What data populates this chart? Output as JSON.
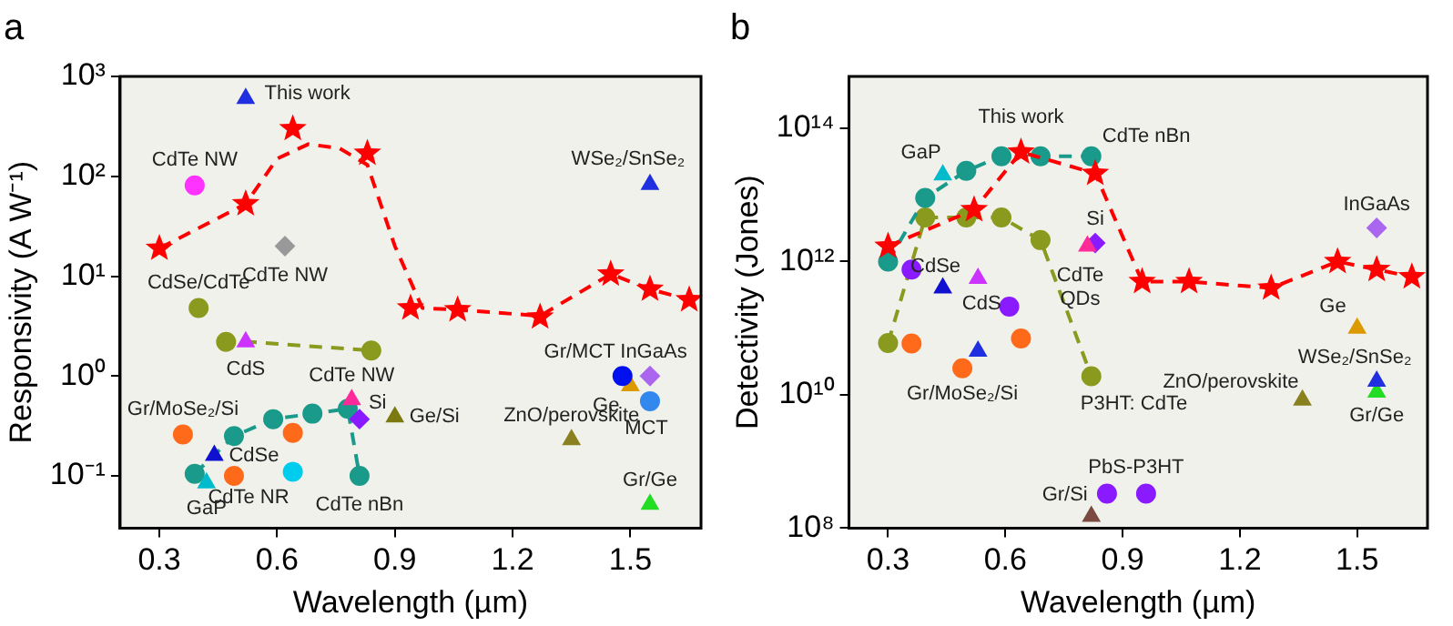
{
  "chart_data": [
    {
      "type": "scatter",
      "title": "a",
      "xlabel": "Wavelength (µm)",
      "ylabel": "Responsivity (A W⁻¹)",
      "log": "y",
      "xlim": [
        0.2,
        1.68
      ],
      "xticks": [
        0.3,
        0.6,
        0.9,
        1.2,
        1.5
      ],
      "ylim": [
        0.03,
        1000
      ],
      "yticks": [
        {
          "value": 0.1,
          "label": "10⁻¹"
        },
        {
          "value": 1,
          "label": "10⁰"
        },
        {
          "value": 10,
          "label": "10¹"
        },
        {
          "value": 100,
          "label": "10²"
        },
        {
          "value": 1000,
          "label": "10³"
        }
      ],
      "series": [
        {
          "name": "This work",
          "type": "scatter",
          "marker": "star",
          "color": "#ff0000",
          "x": [
            0.3,
            0.52,
            0.64,
            0.83,
            0.94,
            1.06,
            1.27,
            1.45,
            1.55,
            1.65
          ],
          "values": [
            19,
            53,
            300,
            170,
            4.8,
            4.6,
            3.9,
            10.5,
            7.4,
            5.8
          ]
        },
        {
          "type": "line",
          "marker": "none",
          "line_style": "dashed",
          "color": "#ff0000",
          "x": [
            0.3,
            0.52,
            0.6,
            0.68,
            0.76,
            0.83,
            0.9,
            0.97,
            1.06,
            1.27,
            1.45,
            1.55,
            1.65
          ],
          "values": [
            19,
            53,
            150,
            210,
            190,
            130,
            20,
            4.8,
            4.6,
            4,
            10.5,
            7.4,
            5.8
          ]
        },
        {
          "type": "scatter",
          "marker": "triangle",
          "color": "#2030e0",
          "x": [
            0.52
          ],
          "values": [
            600
          ]
        },
        {
          "name": "WSe₂/SnSe₂",
          "type": "scatter",
          "marker": "triangle",
          "color": "#2030e0",
          "x": [
            1.55
          ],
          "values": [
            83
          ]
        },
        {
          "name": "CdTe NW",
          "type": "scatter",
          "marker": "circle",
          "color": "#ff33ff",
          "x": [
            0.39
          ],
          "values": [
            81
          ]
        },
        {
          "name": "CdTe NW",
          "type": "scatter",
          "marker": "diamond",
          "color": "#999999",
          "x": [
            0.62
          ],
          "values": [
            20
          ]
        },
        {
          "name": "CdSe/CdTe",
          "type": "scatter",
          "marker": "circle",
          "color": "#8a9a1e",
          "x": [
            0.4,
            0.47,
            0.84
          ],
          "values": [
            4.8,
            2.2,
            1.8
          ]
        },
        {
          "type": "line",
          "marker": "none",
          "line_style": "dashed",
          "color": "#8a9a1e",
          "x": [
            0.46,
            0.84
          ],
          "values": [
            2.3,
            1.8
          ]
        },
        {
          "name": "CdS",
          "type": "scatter",
          "marker": "triangle",
          "color": "#cc33ff",
          "x": [
            0.52
          ],
          "values": [
            2.2
          ]
        },
        {
          "name": "Gr/MoSe₂/Si",
          "type": "scatter",
          "marker": "circle",
          "color": "#ff6a1a",
          "x": [
            0.36,
            0.49,
            0.64
          ],
          "values": [
            0.26,
            0.1,
            0.27
          ]
        },
        {
          "name": "CdSe",
          "type": "scatter",
          "marker": "triangle",
          "color": "#1010d0",
          "x": [
            0.44
          ],
          "values": [
            0.16
          ]
        },
        {
          "name": "GaP",
          "type": "scatter",
          "marker": "triangle",
          "color": "#00bbcc",
          "x": [
            0.42
          ],
          "values": [
            0.085
          ]
        },
        {
          "name": "CdTe NR",
          "type": "scatter",
          "marker": "circle",
          "color": "#00ccee",
          "x": [
            0.64
          ],
          "values": [
            0.11
          ]
        },
        {
          "name": "CdTe nBn",
          "type": "line",
          "marker": "circle",
          "line_style": "dashed",
          "color": "#1a9a8a",
          "x": [
            0.39,
            0.49,
            0.59,
            0.69,
            0.78,
            0.81
          ],
          "values": [
            0.105,
            0.25,
            0.37,
            0.42,
            0.47,
            0.1
          ]
        },
        {
          "name": "CdTe NW",
          "type": "scatter",
          "marker": "triangle",
          "color": "#ff2a9a",
          "x": [
            0.79
          ],
          "values": [
            0.58
          ]
        },
        {
          "name": "Si",
          "type": "scatter",
          "marker": "diamond",
          "color": "#8a1aff",
          "x": [
            0.81
          ],
          "values": [
            0.37
          ]
        },
        {
          "name": "Ge/Si",
          "type": "scatter",
          "marker": "triangle",
          "color": "#7a7a10",
          "x": [
            0.9
          ],
          "values": [
            0.39
          ]
        },
        {
          "name": "Gr/MCT",
          "type": "scatter",
          "marker": "circle",
          "color": "#0010ee",
          "x": [
            1.48
          ],
          "values": [
            1
          ]
        },
        {
          "name": "InGaAs",
          "type": "scatter",
          "marker": "diamond",
          "color": "#aa66ee",
          "x": [
            1.55
          ],
          "values": [
            1
          ]
        },
        {
          "name": "Ge",
          "type": "scatter",
          "marker": "triangle",
          "color": "#dd9900",
          "x": [
            1.5
          ],
          "values": [
            0.8
          ]
        },
        {
          "name": "MCT",
          "type": "scatter",
          "marker": "circle",
          "color": "#3388ee",
          "x": [
            1.55
          ],
          "values": [
            0.56
          ]
        },
        {
          "name": "ZnO/perovskite",
          "type": "scatter",
          "marker": "triangle",
          "color": "#8a8020",
          "x": [
            1.35
          ],
          "values": [
            0.23
          ]
        },
        {
          "name": "Gr/Ge",
          "type": "scatter",
          "marker": "triangle",
          "color": "#22dd22",
          "x": [
            1.55
          ],
          "values": [
            0.052
          ]
        }
      ]
    },
    {
      "type": "scatter",
      "title": "b",
      "xlabel": "Wavelength (µm)",
      "ylabel": "Detectivity (Jones)",
      "log": "y",
      "xlim": [
        0.2,
        1.68
      ],
      "xticks": [
        0.3,
        0.6,
        0.9,
        1.2,
        1.5
      ],
      "ylim": [
        100000000.0,
        600000000000000.0
      ],
      "yticks": [
        {
          "value": 100000000.0,
          "label": "10⁸"
        },
        {
          "value": 10000000000.0,
          "label": "10¹⁰"
        },
        {
          "value": 1000000000000.0,
          "label": "10¹²"
        },
        {
          "value": 100000000000000.0,
          "label": "10¹⁴"
        }
      ],
      "series": [
        {
          "name": "This work",
          "type": "scatter",
          "marker": "star",
          "color": "#ff0000",
          "x": [
            0.3,
            0.52,
            0.64,
            0.83,
            0.95,
            1.07,
            1.28,
            1.45,
            1.55,
            1.64
          ],
          "values": [
            1700000000000.0,
            6000000000000.0,
            44000000000000.0,
            21000000000000.0,
            500000000000.0,
            500000000000.0,
            400000000000.0,
            1000000000000.0,
            760000000000.0,
            590000000000.0
          ]
        },
        {
          "type": "line",
          "marker": "none",
          "line_style": "dashed",
          "color": "#ff0000",
          "x": [
            0.3,
            0.52,
            0.64,
            0.83,
            0.95,
            1.07,
            1.28,
            1.45,
            1.55,
            1.64
          ],
          "values": [
            1700000000000.0,
            6000000000000.0,
            44000000000000.0,
            21000000000000.0,
            500000000000.0,
            500000000000.0,
            400000000000.0,
            1000000000000.0,
            760000000000.0,
            590000000000.0
          ]
        },
        {
          "name": "CdTe nBn",
          "type": "line",
          "marker": "circle",
          "line_style": "dashed",
          "color": "#1a9a8a",
          "x": [
            0.3,
            0.395,
            0.5,
            0.59,
            0.69,
            0.82
          ],
          "values": [
            1000000000000.0,
            9000000000000.0,
            23000000000000.0,
            38000000000000.0,
            38000000000000.0,
            38000000000000.0
          ]
        },
        {
          "name": "GaP",
          "type": "scatter",
          "marker": "triangle",
          "color": "#00bbcc",
          "x": [
            0.44
          ],
          "values": [
            20000000000000.0
          ]
        },
        {
          "name": "P3HT: CdTe",
          "type": "line",
          "marker": "circle",
          "line_style": "dashed",
          "color": "#8a9a1e",
          "x": [
            0.3,
            0.395,
            0.5,
            0.59,
            0.69,
            0.82
          ],
          "values": [
            60000000000.0,
            4600000000000.0,
            4600000000000.0,
            4600000000000.0,
            2100000000000.0,
            19000000000.0
          ]
        },
        {
          "type": "scatter",
          "marker": "circle",
          "color": "#8a1aff",
          "x": [
            0.36,
            0.61
          ],
          "values": [
            760000000000.0,
            210000000000.0
          ]
        },
        {
          "name": "PbS-P3HT",
          "type": "scatter",
          "marker": "circle",
          "color": "#8a1aff",
          "x": [
            0.86,
            0.96
          ],
          "values": [
            330000000.0,
            330000000.0
          ]
        },
        {
          "name": "CdSe",
          "type": "scatter",
          "marker": "triangle",
          "color": "#1010d0",
          "x": [
            0.44
          ],
          "values": [
            400000000000.0
          ]
        },
        {
          "name": "CdS",
          "type": "scatter",
          "marker": "triangle",
          "color": "#cc33ff",
          "x": [
            0.53
          ],
          "values": [
            560000000000.0
          ]
        },
        {
          "name": "Gr/MoSe₂/Si",
          "type": "scatter",
          "marker": "circle",
          "color": "#ff6a1a",
          "x": [
            0.36,
            0.49,
            0.64
          ],
          "values": [
            59000000000.0,
            25000000000.0,
            70000000000.0
          ]
        },
        {
          "type": "scatter",
          "marker": "triangle",
          "color": "#2030e0",
          "x": [
            0.53
          ],
          "values": [
            45000000000.0
          ]
        },
        {
          "name": "Gr/Si",
          "type": "scatter",
          "marker": "triangle",
          "color": "#7a4a40",
          "x": [
            0.82
          ],
          "values": [
            150000000.0
          ]
        },
        {
          "name": "CdTe QDs",
          "type": "scatter",
          "marker": "triangle",
          "color": "#ff2a9a",
          "x": [
            0.81
          ],
          "values": [
            1700000000000.0
          ]
        },
        {
          "name": "Si",
          "type": "scatter",
          "marker": "diamond",
          "color": "#8a1aff",
          "x": [
            0.83
          ],
          "values": [
            1900000000000.0
          ]
        },
        {
          "name": "InGaAs",
          "type": "scatter",
          "marker": "diamond",
          "color": "#aa66ee",
          "x": [
            1.55
          ],
          "values": [
            3200000000000.0
          ]
        },
        {
          "name": "Ge",
          "type": "scatter",
          "marker": "triangle",
          "color": "#dd9900",
          "x": [
            1.5
          ],
          "values": [
            100000000000.0
          ]
        },
        {
          "name": "WSe₂/SnSe₂",
          "type": "scatter",
          "marker": "triangle",
          "color": "#2030e0",
          "x": [
            1.55
          ],
          "values": [
            16000000000.0
          ]
        },
        {
          "name": "Gr/Ge",
          "type": "scatter",
          "marker": "triangle",
          "color": "#22dd22",
          "x": [
            1.55
          ],
          "values": [
            11000000000.0
          ]
        },
        {
          "name": "ZnO/perovskite",
          "type": "scatter",
          "marker": "triangle",
          "color": "#8a8020",
          "x": [
            1.36
          ],
          "values": [
            8300000000.0
          ]
        }
      ]
    }
  ]
}
